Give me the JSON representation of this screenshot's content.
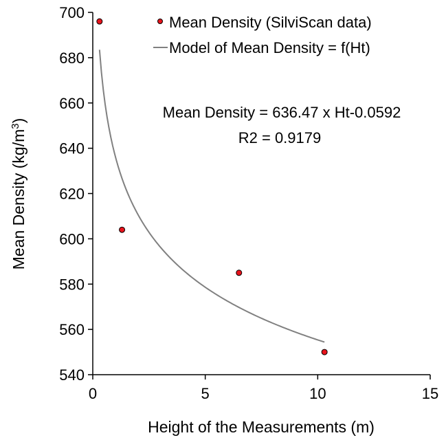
{
  "chart_data": {
    "type": "scatter",
    "title": "",
    "xlabel": "Height of the Measurements (m)",
    "ylabel": "Mean Density (kg/m",
    "ylabel_sup": "3",
    "ylabel_end": ")",
    "xlim": [
      0,
      15
    ],
    "ylim": [
      540,
      700
    ],
    "xticks": [
      0,
      5,
      10,
      15
    ],
    "yticks": [
      540,
      560,
      580,
      600,
      620,
      640,
      660,
      680,
      700
    ],
    "grid": false,
    "legend_position": "top-right",
    "series": [
      {
        "name": "Mean Density (SilviScan data)",
        "kind": "scatter",
        "color": "#e8141c",
        "x": [
          0.3,
          1.3,
          6.5,
          10.3
        ],
        "y": [
          696,
          604,
          585,
          550
        ]
      },
      {
        "name": "Model of Mean Density = f(Ht)",
        "kind": "line",
        "color": "#808080",
        "model": {
          "a": 636.47,
          "b": -0.0592,
          "x_min": 0.3,
          "x_max": 10.3
        }
      }
    ],
    "annotations": [
      "Mean Density = 636.47 x Ht-0.0592",
      "R2 = 0.9179"
    ]
  }
}
